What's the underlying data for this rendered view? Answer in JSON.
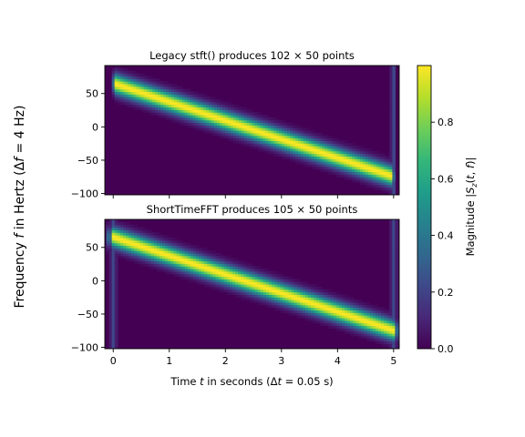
{
  "figure": {
    "ylabel": "Frequency f in Hertz (Δf = 4 Hz)",
    "ylabel_parts": [
      "Frequency ",
      "f",
      " in Hertz (Δ",
      "f",
      " = 4 Hz)"
    ]
  },
  "chart_data": [
    {
      "type": "heatmap",
      "title": "Legacy stft() produces 102 × 50 points",
      "title_parts": [
        "Legacy stft() produces 102 ",
        "×",
        " 50 points"
      ],
      "xlabel": "",
      "xlim": [
        -0.15,
        5.1
      ],
      "ylim": [
        -102,
        92
      ],
      "yticks": [
        50,
        0,
        -50,
        -100
      ],
      "ytick_labels": [
        "50",
        "0",
        "−50",
        "−100"
      ],
      "xticks": [
        0,
        1,
        2,
        3,
        4,
        5
      ],
      "xtick_labels_visible": false,
      "signal": {
        "f_start": 66,
        "f_end": -74,
        "t_start": 0,
        "t_end": 5,
        "band_width_hz": 22,
        "edge_artifact_at": [
          5.0
        ]
      },
      "time_extent": [
        -0.025,
        5.025
      ]
    },
    {
      "type": "heatmap",
      "title": "ShortTimeFFT produces 105 × 50 points",
      "title_parts": [
        "ShortTimeFFT produces 105 ",
        "×",
        " 50 points"
      ],
      "xlabel": "Time t in seconds (Δt = 0.05 s)",
      "xlabel_parts": [
        "Time ",
        "t",
        " in seconds (Δ",
        "t",
        " = 0.05 s)"
      ],
      "xlim": [
        -0.15,
        5.1
      ],
      "ylim": [
        -102,
        92
      ],
      "yticks": [
        50,
        0,
        -50,
        -100
      ],
      "ytick_labels": [
        "50",
        "0",
        "−50",
        "−100"
      ],
      "xticks": [
        0,
        1,
        2,
        3,
        4,
        5
      ],
      "xtick_labels": [
        "0",
        "1",
        "2",
        "3",
        "4",
        "5"
      ],
      "signal": {
        "f_start": 66,
        "f_end": -74,
        "t_start": 0,
        "t_end": 5,
        "band_width_hz": 22,
        "edge_artifact_at": [
          0.0,
          5.0
        ]
      },
      "time_extent": [
        -0.125,
        5.125
      ]
    }
  ],
  "colorbar": {
    "label": "Magnitude |Sz(t, f)|",
    "label_parts": [
      "Magnitude |",
      "S",
      "z",
      "(",
      "t",
      ", ",
      "f",
      ")|"
    ],
    "range": [
      0,
      1
    ],
    "ticks": [
      0.0,
      0.2,
      0.4,
      0.6,
      0.8
    ],
    "tick_labels": [
      "0.0",
      "0.2",
      "0.4",
      "0.6",
      "0.8"
    ],
    "colormap": "viridis",
    "colors": [
      "#440154",
      "#482878",
      "#3e4989",
      "#31688e",
      "#26828e",
      "#1f9e89",
      "#35b779",
      "#6ece58",
      "#b5de2b",
      "#fde725"
    ]
  }
}
